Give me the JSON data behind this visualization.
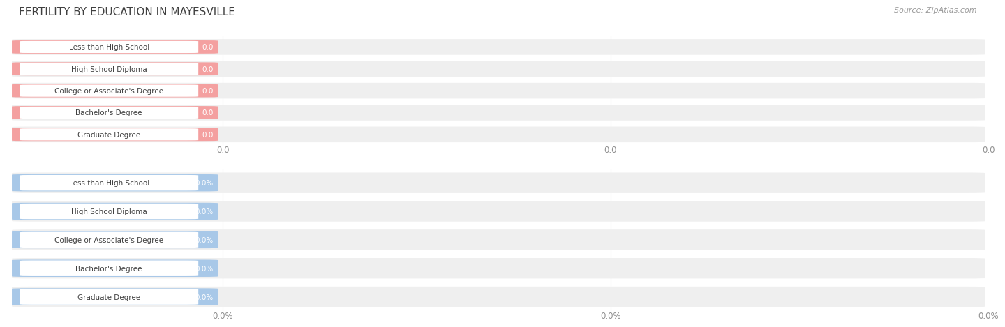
{
  "title": "FERTILITY BY EDUCATION IN MAYESVILLE",
  "source": "Source: ZipAtlas.com",
  "categories": [
    "Less than High School",
    "High School Diploma",
    "College or Associate's Degree",
    "Bachelor's Degree",
    "Graduate Degree"
  ],
  "top_values": [
    0.0,
    0.0,
    0.0,
    0.0,
    0.0
  ],
  "bottom_values": [
    0.0,
    0.0,
    0.0,
    0.0,
    0.0
  ],
  "top_bar_color": "#F4A0A0",
  "bottom_bar_color": "#A8C8E8",
  "bar_bg_color": "#EFEFEF",
  "title_color": "#404040",
  "tick_label_color": "#909090",
  "value_label_color_top": "#F4A0A0",
  "value_label_color_bottom": "#A8C8E8",
  "bg_color": "#FFFFFF",
  "top_tick_labels": [
    "0.0",
    "0.0",
    "0.0"
  ],
  "bottom_tick_labels": [
    "0.0%",
    "0.0%",
    "0.0%"
  ],
  "top_value_fmt": "0.0",
  "bottom_value_fmt": "0.0%",
  "title_fontsize": 11,
  "source_fontsize": 8,
  "cat_fontsize": 7.5,
  "val_fontsize": 7.5,
  "tick_fontsize": 8.5
}
